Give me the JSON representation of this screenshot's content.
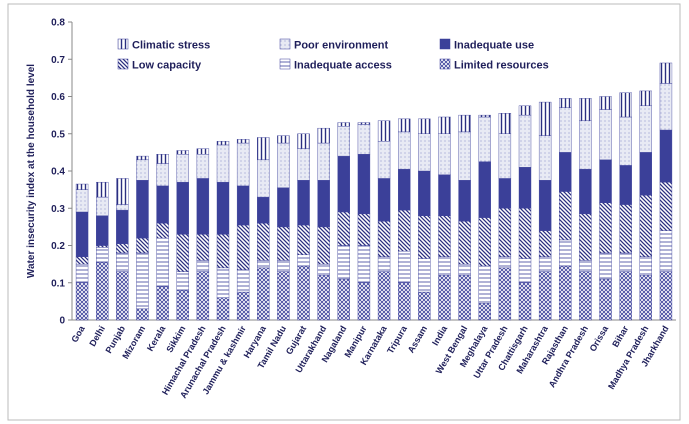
{
  "chart_data": {
    "type": "stacked_bar",
    "y_label": "Water insecurity index at the household  level",
    "categories": [
      "Goa",
      "Delhi",
      "Punjab",
      "Mizoram",
      "Kerala",
      "Sikkim",
      "Himachal Pradesh",
      "Arunachal Pradesh",
      "Jammu & kashmir",
      "Haryana",
      "Tamil Nadu",
      "Gujarat",
      "Uttarakhand",
      "Nagaland",
      "Manipur",
      "Karnataka",
      "Tripura",
      "Assam",
      "India",
      "West Bengal",
      "Meghalaya",
      "Uttar Pradesh",
      "Chattisgarh",
      "Maharashtra",
      "Rajasthan",
      "Andhra Pradesh",
      "Orissa",
      "Bihar",
      "Madhya Pradesh",
      "Jharkhand"
    ],
    "series": [
      {
        "name": "Limited resources",
        "color": "#3a3f9a",
        "values": [
          0.1,
          0.155,
          0.13,
          0.03,
          0.09,
          0.08,
          0.13,
          0.06,
          0.075,
          0.14,
          0.13,
          0.145,
          0.12,
          0.11,
          0.1,
          0.13,
          0.1,
          0.075,
          0.12,
          0.12,
          0.045,
          0.14,
          0.1,
          0.13,
          0.145,
          0.13,
          0.11,
          0.13,
          0.12,
          0.13
        ]
      },
      {
        "name": "Inadequate access",
        "color": "#3a3f9a",
        "values": [
          0.05,
          0.04,
          0.05,
          0.15,
          0.13,
          0.05,
          0.03,
          0.08,
          0.06,
          0.02,
          0.03,
          0.03,
          0.03,
          0.09,
          0.1,
          0.04,
          0.085,
          0.09,
          0.05,
          0.03,
          0.1,
          0.03,
          0.065,
          0.04,
          0.07,
          0.03,
          0.07,
          0.05,
          0.05,
          0.11
        ]
      },
      {
        "name": "Low capacity",
        "color": "#2b2f80",
        "values": [
          0.02,
          0.005,
          0.025,
          0.04,
          0.04,
          0.1,
          0.07,
          0.09,
          0.12,
          0.1,
          0.09,
          0.08,
          0.1,
          0.09,
          0.085,
          0.095,
          0.11,
          0.115,
          0.11,
          0.115,
          0.13,
          0.13,
          0.135,
          0.07,
          0.13,
          0.125,
          0.135,
          0.13,
          0.165,
          0.13
        ]
      },
      {
        "name": "Inadequate use",
        "color": "#3b4099",
        "values": [
          0.12,
          0.08,
          0.09,
          0.155,
          0.1,
          0.14,
          0.15,
          0.14,
          0.105,
          0.07,
          0.105,
          0.12,
          0.125,
          0.15,
          0.16,
          0.115,
          0.11,
          0.12,
          0.11,
          0.11,
          0.15,
          0.08,
          0.11,
          0.135,
          0.105,
          0.12,
          0.115,
          0.105,
          0.115,
          0.14
        ]
      },
      {
        "name": "Poor environment",
        "color": "#6a70b8",
        "values": [
          0.06,
          0.05,
          0.015,
          0.055,
          0.06,
          0.075,
          0.065,
          0.1,
          0.115,
          0.1,
          0.12,
          0.085,
          0.1,
          0.08,
          0.08,
          0.1,
          0.1,
          0.1,
          0.11,
          0.13,
          0.12,
          0.12,
          0.14,
          0.12,
          0.12,
          0.13,
          0.135,
          0.13,
          0.125,
          0.125
        ]
      },
      {
        "name": "Climatic stress",
        "color": "#2b2f80",
        "values": [
          0.015,
          0.04,
          0.07,
          0.01,
          0.025,
          0.01,
          0.015,
          0.01,
          0.01,
          0.06,
          0.02,
          0.04,
          0.04,
          0.01,
          0.005,
          0.055,
          0.035,
          0.04,
          0.045,
          0.045,
          0.005,
          0.055,
          0.025,
          0.09,
          0.025,
          0.06,
          0.035,
          0.065,
          0.04,
          0.055
        ]
      }
    ],
    "ylim": [
      0,
      0.8
    ],
    "yticks": [
      0,
      0.1,
      0.2,
      0.3,
      0.4,
      0.5,
      0.6,
      0.7,
      0.8
    ]
  }
}
